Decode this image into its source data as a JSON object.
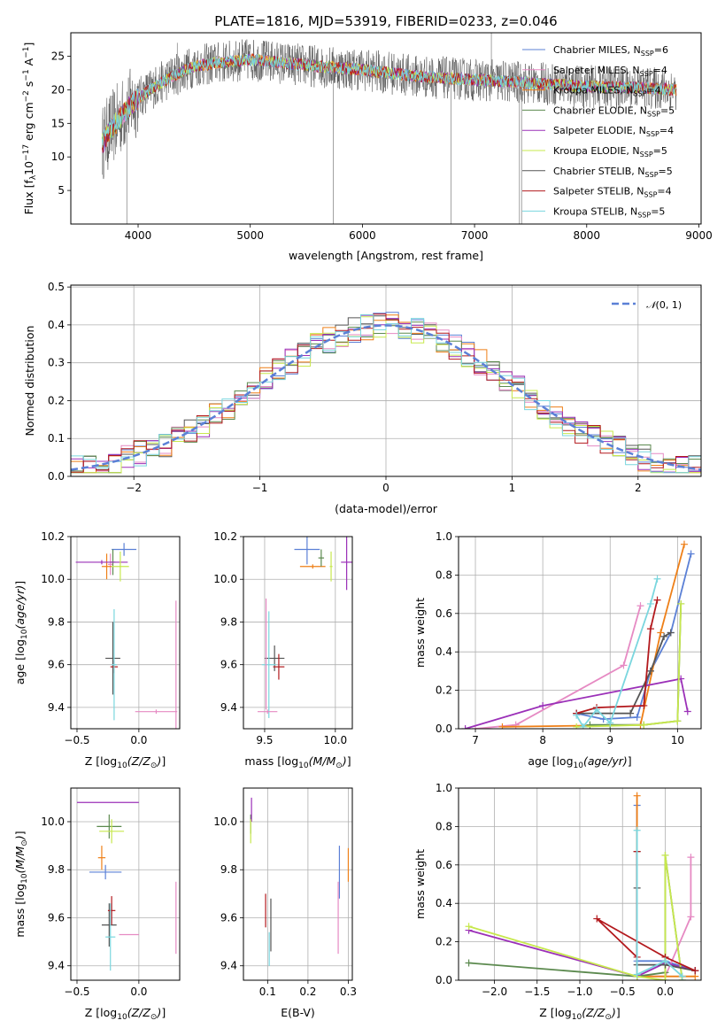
{
  "colors": [
    "#5b80d6",
    "#e68ac3",
    "#ee7f17",
    "#5c8a4f",
    "#9b30b8",
    "#c7e84d",
    "#555555",
    "#b3191d",
    "#7ad6de"
  ],
  "chart_data": [
    {
      "id": "spectrum",
      "type": "line",
      "title": "PLATE=1816, MJD=53919, FIBERID=0233, z=0.046",
      "xlabel": "wavelength [Angstrom, rest frame]",
      "ylabel": "Flux [f",
      "xlim": [
        3400,
        9020
      ],
      "ylim": [
        0,
        28.5
      ],
      "xticks": [
        4000,
        5000,
        6000,
        7000,
        8000,
        9000
      ],
      "yticks": [
        5,
        10,
        15,
        20,
        25
      ],
      "legend_position": "upper right",
      "legend": [
        {
          "label": "Chabrier MILES, N",
          "sub": "SSP",
          "val": "=6"
        },
        {
          "label": "Salpeter MILES, N",
          "sub": "SSP",
          "val": "=4"
        },
        {
          "label": "Kroupa MILES, N",
          "sub": "SSP",
          "val": "=4"
        },
        {
          "label": "Chabrier ELODIE, N",
          "sub": "SSP",
          "val": "=5"
        },
        {
          "label": "Salpeter ELODIE, N",
          "sub": "SSP",
          "val": "=4"
        },
        {
          "label": "Kroupa ELODIE, N",
          "sub": "SSP",
          "val": "=5"
        },
        {
          "label": "Chabrier STELIB, N",
          "sub": "SSP",
          "val": "=5"
        },
        {
          "label": "Salpeter STELIB, N",
          "sub": "SSP",
          "val": "=4"
        },
        {
          "label": "Kroupa STELIB, N",
          "sub": "SSP",
          "val": "=5"
        }
      ],
      "continuum": [
        [
          3680,
          12
        ],
        [
          3750,
          14
        ],
        [
          3850,
          16
        ],
        [
          3950,
          18
        ],
        [
          4100,
          20
        ],
        [
          4300,
          22
        ],
        [
          4500,
          23.5
        ],
        [
          4700,
          24
        ],
        [
          5000,
          24.5
        ],
        [
          5300,
          24
        ],
        [
          5600,
          23.5
        ],
        [
          6000,
          23
        ],
        [
          6500,
          22
        ],
        [
          7000,
          21.5
        ],
        [
          7500,
          21
        ],
        [
          8000,
          20.5
        ],
        [
          8500,
          20.3
        ],
        [
          8800,
          20
        ]
      ],
      "spikes": [
        [
          3900,
          0
        ],
        [
          4350,
          27
        ],
        [
          5740,
          0
        ],
        [
          6790,
          0
        ],
        [
          7400,
          0
        ],
        [
          7420,
          0
        ],
        [
          7150,
          28.5
        ]
      ]
    },
    {
      "id": "residual_hist",
      "type": "histogram",
      "xlabel": "(data-model)/error",
      "ylabel": "Normed distribution",
      "xlim": [
        -2.5,
        2.5
      ],
      "ylim": [
        0,
        0.505
      ],
      "xticks": [
        -2,
        -1,
        0,
        1,
        2
      ],
      "yticks": [
        0.0,
        0.1,
        0.2,
        0.3,
        0.4,
        0.5
      ],
      "legend": "(0, 1)",
      "legend_position": "upper right",
      "bin_width": 0.1
    },
    {
      "id": "age_vs_Z",
      "type": "scatter",
      "xlabel": "Z [log",
      "ylabel": "age  [log",
      "xlim": [
        -0.55,
        0.33
      ],
      "ylim": [
        9.3,
        10.2
      ],
      "xticks": [
        -0.5,
        0.0
      ],
      "yticks": [
        9.4,
        9.6,
        9.8,
        10.0,
        10.2
      ],
      "points": [
        {
          "x": -0.12,
          "y": 10.14,
          "xe": 0.1,
          "ye": 0.03,
          "c": 0
        },
        {
          "x": -0.23,
          "y": 10.07,
          "xe": 0.02,
          "ye": 0.05,
          "c": 1
        },
        {
          "x": -0.26,
          "y": 10.06,
          "xe": 0.04,
          "ye": 0.06,
          "c": 2
        },
        {
          "x": -0.21,
          "y": 10.08,
          "xe": 0.02,
          "ye": 0.06,
          "c": 3
        },
        {
          "x": -0.3,
          "y": 10.08,
          "xe": 0.21,
          "ye": 0.01,
          "c": 4
        },
        {
          "x": -0.15,
          "y": 10.06,
          "xe": 0.07,
          "ye": 0.07,
          "c": 5
        },
        {
          "x": -0.21,
          "y": 9.63,
          "xe": 0.06,
          "ye": 0.17,
          "c": 6
        },
        {
          "x": -0.2,
          "y": 9.59,
          "xe": 0.03,
          "ye": 0.03,
          "c": 7
        },
        {
          "x": -0.2,
          "y": 9.6,
          "xe": 0.02,
          "ye": 0.26,
          "c": 8
        },
        {
          "x": 0.14,
          "y": 9.38,
          "xe": 0.17,
          "ye": 0.01,
          "c": 1
        },
        {
          "x": 0.3,
          "y": 9.5,
          "xe": 0.0,
          "ye": 0.4,
          "c": 1
        }
      ]
    },
    {
      "id": "age_vs_mass",
      "type": "scatter",
      "xlabel": "mass [log",
      "ylabel": "",
      "xlim": [
        9.35,
        10.12
      ],
      "ylim": [
        9.3,
        10.2
      ],
      "xticks": [
        9.5,
        10.0
      ],
      "yticks": [
        9.4,
        9.6,
        9.8,
        10.0,
        10.2
      ],
      "points": [
        {
          "x": 9.8,
          "y": 10.14,
          "xe": 0.09,
          "ye": 0.07,
          "c": 0
        },
        {
          "x": 9.84,
          "y": 10.06,
          "xe": 0.09,
          "ye": 0.01,
          "c": 2
        },
        {
          "x": 9.9,
          "y": 10.1,
          "xe": 0.02,
          "ye": 0.04,
          "c": 3
        },
        {
          "x": 10.08,
          "y": 10.08,
          "xe": 0.04,
          "ye": 0.13,
          "c": 4
        },
        {
          "x": 9.97,
          "y": 10.06,
          "xe": 0.01,
          "ye": 0.07,
          "c": 5
        },
        {
          "x": 9.57,
          "y": 9.63,
          "xe": 0.07,
          "ye": 0.06,
          "c": 6
        },
        {
          "x": 9.6,
          "y": 9.59,
          "xe": 0.04,
          "ye": 0.06,
          "c": 7
        },
        {
          "x": 9.53,
          "y": 9.6,
          "xe": 0.05,
          "ye": 0.25,
          "c": 8
        },
        {
          "x": 9.51,
          "y": 9.65,
          "xe": 0.0,
          "ye": 0.26,
          "c": 1
        },
        {
          "x": 9.52,
          "y": 9.38,
          "xe": 0.07,
          "ye": 0.01,
          "c": 1
        }
      ]
    },
    {
      "id": "massweight_vs_age",
      "type": "line",
      "xlabel": "age  [log",
      "ylabel": "mass weight",
      "xlim": [
        6.75,
        10.35
      ],
      "ylim": [
        0,
        1.0
      ],
      "xticks": [
        7,
        8,
        9,
        10
      ],
      "yticks": [
        0.0,
        0.2,
        0.4,
        0.6,
        0.8,
        1.0
      ],
      "series": [
        {
          "c": 0,
          "pts": [
            [
              8.5,
              0.08
            ],
            [
              8.9,
              0.05
            ],
            [
              9.4,
              0.06
            ],
            [
              9.6,
              0.3
            ],
            [
              9.9,
              0.5
            ],
            [
              10.2,
              0.91
            ]
          ]
        },
        {
          "c": 1,
          "pts": [
            [
              7.0,
              0.0
            ],
            [
              7.6,
              0.02
            ],
            [
              9.2,
              0.33
            ],
            [
              9.45,
              0.64
            ]
          ]
        },
        {
          "c": 2,
          "pts": [
            [
              7.4,
              0.01
            ],
            [
              9.45,
              0.02
            ],
            [
              9.75,
              0.5
            ],
            [
              10.1,
              0.96
            ]
          ]
        },
        {
          "c": 3,
          "pts": [
            [
              8.7,
              0.02
            ],
            [
              9.0,
              0.02
            ],
            [
              9.5,
              0.02
            ],
            [
              10.0,
              0.04
            ],
            [
              10.05,
              0.65
            ]
          ]
        },
        {
          "c": 4,
          "pts": [
            [
              6.85,
              0.0
            ],
            [
              8.0,
              0.12
            ],
            [
              10.05,
              0.26
            ],
            [
              10.15,
              0.09
            ]
          ]
        },
        {
          "c": 5,
          "pts": [
            [
              8.5,
              0.01
            ],
            [
              9.5,
              0.02
            ],
            [
              10.0,
              0.04
            ],
            [
              10.05,
              0.65
            ]
          ]
        },
        {
          "c": 6,
          "pts": [
            [
              8.5,
              0.08
            ],
            [
              9.3,
              0.08
            ],
            [
              9.6,
              0.3
            ],
            [
              9.8,
              0.48
            ],
            [
              9.9,
              0.5
            ]
          ]
        },
        {
          "c": 7,
          "pts": [
            [
              8.5,
              0.08
            ],
            [
              8.8,
              0.11
            ],
            [
              9.5,
              0.12
            ],
            [
              9.6,
              0.52
            ],
            [
              9.7,
              0.67
            ]
          ]
        },
        {
          "c": 8,
          "pts": [
            [
              8.5,
              0.07
            ],
            [
              8.6,
              0.01
            ],
            [
              8.8,
              0.1
            ],
            [
              9.0,
              0.03
            ],
            [
              9.6,
              0.65
            ],
            [
              9.7,
              0.78
            ]
          ]
        }
      ]
    },
    {
      "id": "mass_vs_Z",
      "type": "scatter",
      "xlabel": "Z [log",
      "ylabel": "mass [log",
      "xlim": [
        -0.55,
        0.33
      ],
      "ylim": [
        9.34,
        10.14
      ],
      "xticks": [
        -0.5,
        0.0
      ],
      "yticks": [
        9.4,
        9.6,
        9.8,
        10.0
      ],
      "points": [
        {
          "x": -0.27,
          "y": 9.79,
          "xe": 0.13,
          "ye": 0.03,
          "c": 0
        },
        {
          "x": -0.08,
          "y": 9.53,
          "xe": 0.08,
          "ye": 0.0,
          "c": 1
        },
        {
          "x": -0.3,
          "y": 9.85,
          "xe": 0.03,
          "ye": 0.05,
          "c": 2
        },
        {
          "x": -0.24,
          "y": 9.98,
          "xe": 0.1,
          "ye": 0.05,
          "c": 3
        },
        {
          "x": -0.25,
          "y": 10.08,
          "xe": 0.25,
          "ye": 0.0,
          "c": 4
        },
        {
          "x": -0.22,
          "y": 9.96,
          "xe": 0.1,
          "ye": 0.05,
          "c": 5
        },
        {
          "x": -0.24,
          "y": 9.57,
          "xe": 0.06,
          "ye": 0.09,
          "c": 6
        },
        {
          "x": -0.22,
          "y": 9.63,
          "xe": 0.03,
          "ye": 0.06,
          "c": 7
        },
        {
          "x": -0.23,
          "y": 9.52,
          "xe": 0.04,
          "ye": 0.14,
          "c": 8
        },
        {
          "x": 0.3,
          "y": 9.6,
          "xe": 0.0,
          "ye": 0.15,
          "c": 1
        }
      ]
    },
    {
      "id": "mass_vs_EBV",
      "type": "scatter",
      "xlabel": "E(B-V)",
      "ylabel": "",
      "xlim": [
        0.04,
        0.31
      ],
      "ylim": [
        9.34,
        10.14
      ],
      "xticks": [
        0.1,
        0.2,
        0.3
      ],
      "yticks": [
        9.4,
        9.6,
        9.8,
        10.0
      ],
      "points": [
        {
          "x": 0.278,
          "y": 9.79,
          "xe": 0.0,
          "ye": 0.11,
          "c": 0
        },
        {
          "x": 0.275,
          "y": 9.6,
          "xe": 0.0,
          "ye": 0.15,
          "c": 1
        },
        {
          "x": 0.3,
          "y": 9.82,
          "xe": 0.0,
          "ye": 0.07,
          "c": 2
        },
        {
          "x": 0.058,
          "y": 9.99,
          "xe": 0.0,
          "ye": 0.04,
          "c": 3
        },
        {
          "x": 0.06,
          "y": 10.05,
          "xe": 0.0,
          "ye": 0.05,
          "c": 4
        },
        {
          "x": 0.058,
          "y": 9.96,
          "xe": 0.0,
          "ye": 0.05,
          "c": 5
        },
        {
          "x": 0.108,
          "y": 9.57,
          "xe": 0.0,
          "ye": 0.11,
          "c": 6
        },
        {
          "x": 0.095,
          "y": 9.63,
          "xe": 0.0,
          "ye": 0.07,
          "c": 7
        },
        {
          "x": 0.104,
          "y": 9.47,
          "xe": 0.0,
          "ye": 0.07,
          "c": 8
        }
      ]
    },
    {
      "id": "massweight_vs_Z",
      "type": "line",
      "xlabel": "Z [log",
      "ylabel": "mass weight",
      "xlim": [
        -2.42,
        0.42
      ],
      "ylim": [
        0,
        1.0
      ],
      "xticks": [
        -2.0,
        -1.5,
        -1.0,
        -0.5,
        0.0
      ],
      "yticks": [
        0.0,
        0.2,
        0.4,
        0.6,
        0.8,
        1.0
      ],
      "series": [
        {
          "c": 0,
          "pts": [
            [
              -0.33,
              0.91
            ],
            [
              -0.33,
              0.1
            ],
            [
              0.0,
              0.1
            ],
            [
              0.35,
              0.05
            ]
          ]
        },
        {
          "c": 1,
          "pts": [
            [
              0.3,
              0.64
            ],
            [
              0.3,
              0.33
            ],
            [
              0.0,
              0.02
            ],
            [
              -0.33,
              0.02
            ]
          ]
        },
        {
          "c": 2,
          "pts": [
            [
              -0.33,
              0.96
            ],
            [
              -0.33,
              0.02
            ],
            [
              0.0,
              0.02
            ],
            [
              0.35,
              0.02
            ]
          ]
        },
        {
          "c": 3,
          "pts": [
            [
              -2.3,
              0.09
            ],
            [
              -0.33,
              0.02
            ],
            [
              0.0,
              0.04
            ],
            [
              0.0,
              0.65
            ],
            [
              0.2,
              0.0
            ]
          ]
        },
        {
          "c": 4,
          "pts": [
            [
              -2.3,
              0.26
            ],
            [
              -0.33,
              0.02
            ],
            [
              0.0,
              0.09
            ],
            [
              0.35,
              0.05
            ]
          ]
        },
        {
          "c": 5,
          "pts": [
            [
              -2.3,
              0.28
            ],
            [
              -0.33,
              0.02
            ],
            [
              0.0,
              0.0
            ],
            [
              0.0,
              0.65
            ],
            [
              0.2,
              0.0
            ]
          ]
        },
        {
          "c": 6,
          "pts": [
            [
              -0.33,
              0.67
            ],
            [
              -0.33,
              0.48
            ],
            [
              -0.33,
              0.08
            ],
            [
              0.0,
              0.08
            ],
            [
              0.35,
              0.05
            ]
          ]
        },
        {
          "c": 7,
          "pts": [
            [
              -0.33,
              0.67
            ],
            [
              -0.33,
              0.12
            ],
            [
              -0.8,
              0.32
            ],
            [
              0.0,
              0.12
            ],
            [
              0.35,
              0.05
            ]
          ]
        },
        {
          "c": 8,
          "pts": [
            [
              -0.33,
              0.78
            ],
            [
              -0.33,
              0.03
            ],
            [
              0.0,
              0.1
            ],
            [
              0.2,
              0.02
            ]
          ]
        }
      ]
    }
  ]
}
